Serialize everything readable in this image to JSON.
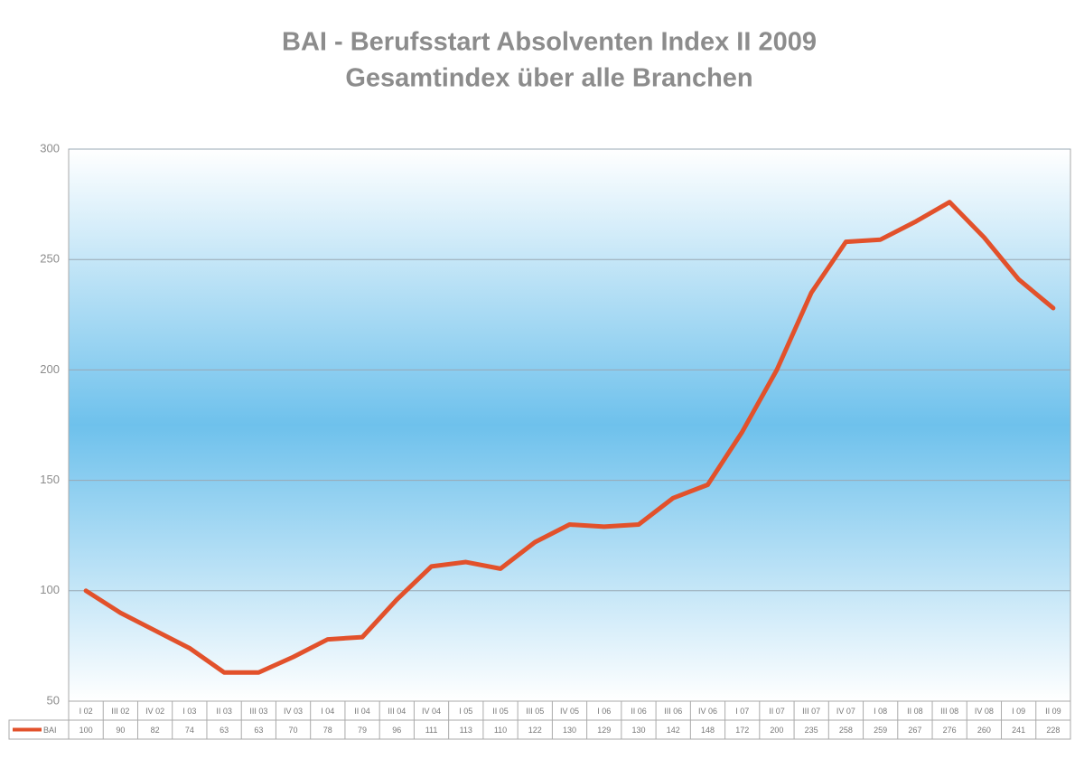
{
  "chart_data": {
    "type": "line",
    "title": "BAI - Berufsstart Absolventen Index II 2009",
    "subtitle": "Gesamtindex über alle Branchen",
    "categories": [
      "I 02",
      "III 02",
      "IV 02",
      "I 03",
      "II 03",
      "III 03",
      "IV 03",
      "I 04",
      "II 04",
      "III 04",
      "IV 04",
      "I 05",
      "II 05",
      "III 05",
      "IV 05",
      "I 06",
      "II 06",
      "III 06",
      "IV 06",
      "I 07",
      "II 07",
      "III 07",
      "IV 07",
      "I 08",
      "II 08",
      "III 08",
      "IV 08",
      "I 09",
      "II 09"
    ],
    "series": [
      {
        "name": "BAI",
        "color": "#e2512b",
        "values": [
          100,
          90,
          82,
          74,
          63,
          63,
          70,
          78,
          79,
          96,
          111,
          113,
          110,
          122,
          130,
          129,
          130,
          142,
          148,
          172,
          200,
          235,
          258,
          259,
          267,
          276,
          260,
          241,
          228
        ]
      }
    ],
    "ylim": [
      50,
      300
    ],
    "yticks": [
      50,
      100,
      150,
      200,
      250,
      300
    ],
    "grid": true
  }
}
